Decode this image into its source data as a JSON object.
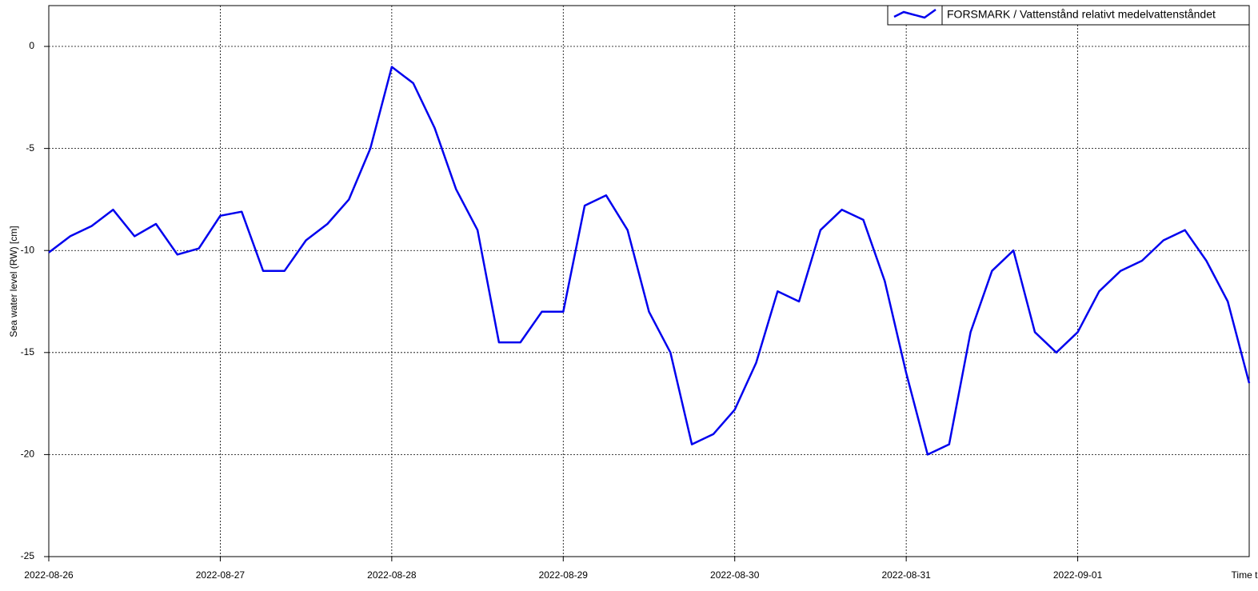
{
  "chart_data": {
    "type": "line",
    "y_label": "Sea water level (RW) [cm]",
    "x_label": "Time t",
    "x": [
      "2022-08-26 00:00",
      "2022-08-26 03:00",
      "2022-08-26 06:00",
      "2022-08-26 09:00",
      "2022-08-26 12:00",
      "2022-08-26 15:00",
      "2022-08-26 18:00",
      "2022-08-26 21:00",
      "2022-08-27 00:00",
      "2022-08-27 03:00",
      "2022-08-27 06:00",
      "2022-08-27 09:00",
      "2022-08-27 12:00",
      "2022-08-27 15:00",
      "2022-08-27 18:00",
      "2022-08-27 21:00",
      "2022-08-28 00:00",
      "2022-08-28 03:00",
      "2022-08-28 06:00",
      "2022-08-28 09:00",
      "2022-08-28 12:00",
      "2022-08-28 15:00",
      "2022-08-28 18:00",
      "2022-08-28 21:00",
      "2022-08-29 00:00",
      "2022-08-29 03:00",
      "2022-08-29 06:00",
      "2022-08-29 09:00",
      "2022-08-29 12:00",
      "2022-08-29 15:00",
      "2022-08-29 18:00",
      "2022-08-29 21:00",
      "2022-08-30 00:00",
      "2022-08-30 03:00",
      "2022-08-30 06:00",
      "2022-08-30 09:00",
      "2022-08-30 12:00",
      "2022-08-30 15:00",
      "2022-08-30 18:00",
      "2022-08-30 21:00",
      "2022-08-31 00:00",
      "2022-08-31 03:00",
      "2022-08-31 06:00",
      "2022-08-31 09:00",
      "2022-08-31 12:00",
      "2022-08-31 15:00",
      "2022-08-31 18:00",
      "2022-08-31 21:00",
      "2022-09-01 00:00",
      "2022-09-01 03:00",
      "2022-09-01 06:00",
      "2022-09-01 09:00",
      "2022-09-01 12:00",
      "2022-09-01 15:00",
      "2022-09-01 18:00",
      "2022-09-01 21:00",
      "2022-09-02 00:00"
    ],
    "series": [
      {
        "name": "FORSMARK / Vattenstånd relativt medelvattenståndet",
        "color": "#0000ee",
        "values": [
          -10.1,
          -9.3,
          -8.8,
          -8.0,
          -9.3,
          -8.7,
          -10.2,
          -9.9,
          -8.3,
          -8.1,
          -11.0,
          -11.0,
          -9.5,
          -8.7,
          -7.5,
          -5.0,
          -1.0,
          -1.8,
          -4.0,
          -7.0,
          -9.0,
          -14.5,
          -14.5,
          -13.0,
          -13.0,
          -7.8,
          -7.3,
          -9.0,
          -13.0,
          -15.0,
          -19.5,
          -19.0,
          -17.8,
          -15.5,
          -12.0,
          -12.5,
          -9.0,
          -8.0,
          -8.5,
          -11.5,
          -16.0,
          -20.0,
          -19.5,
          -14.0,
          -11.0,
          -10.0,
          -14.0,
          -15.0,
          -14.0,
          -12.0,
          -11.0,
          -10.5,
          -9.5,
          -9.0,
          -10.5,
          -12.5,
          -16.5
        ]
      }
    ],
    "xlim": [
      "2022-08-26",
      "2022-09-02"
    ],
    "xticks": [
      "2022-08-26",
      "2022-08-27",
      "2022-08-28",
      "2022-08-29",
      "2022-08-30",
      "2022-08-31",
      "2022-09-01"
    ],
    "ylim": [
      -25,
      2
    ],
    "yticks": [
      0,
      -5,
      -10,
      -15,
      -20,
      -25
    ],
    "grid": true,
    "legend": "upper-right"
  }
}
